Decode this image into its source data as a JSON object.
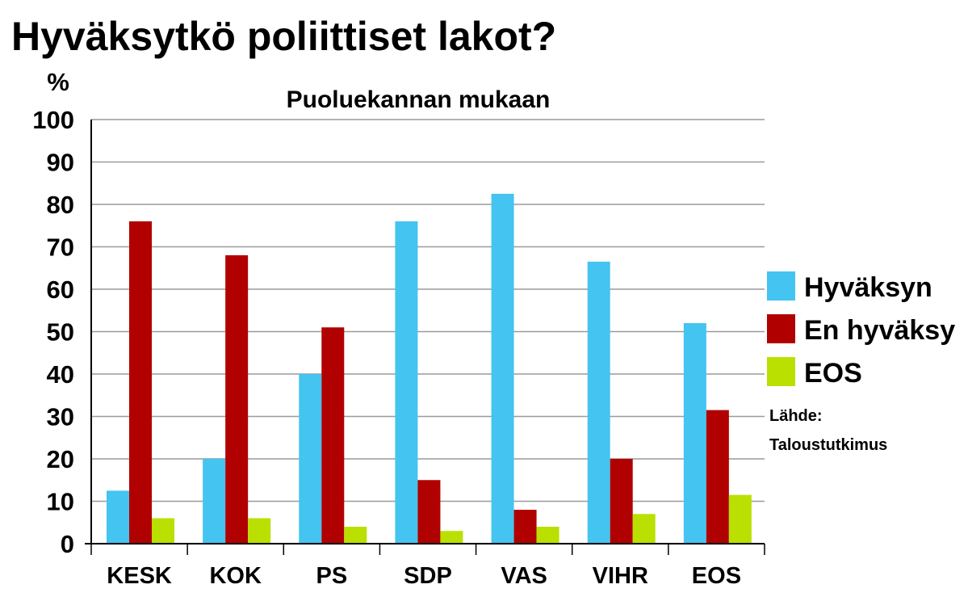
{
  "chart_data": {
    "type": "bar",
    "title": "Hyväksytkö poliittiset lakot?",
    "subtitle": "Puoluekannan mukaan",
    "ylabel": "%",
    "ylim": [
      0,
      100
    ],
    "yticks": [
      0,
      10,
      20,
      30,
      40,
      50,
      60,
      70,
      80,
      90,
      100
    ],
    "grid": true,
    "legend_position": "right",
    "categories": [
      "KESK",
      "KOK",
      "PS",
      "SDP",
      "VAS",
      "VIHR",
      "EOS"
    ],
    "series": [
      {
        "name": "Hyväksyn",
        "color": "#44c4f0",
        "values": [
          12.5,
          20,
          40,
          76,
          82.5,
          66.5,
          52
        ]
      },
      {
        "name": "En hyväksy",
        "color": "#b10000",
        "values": [
          76,
          68,
          51,
          15,
          8,
          20,
          31.5
        ]
      },
      {
        "name": "EOS",
        "color": "#b9e000",
        "values": [
          6,
          6,
          4,
          3,
          4,
          7,
          11.5
        ]
      }
    ],
    "source_label": "Lähde:",
    "source": "Taloustutkimus"
  }
}
